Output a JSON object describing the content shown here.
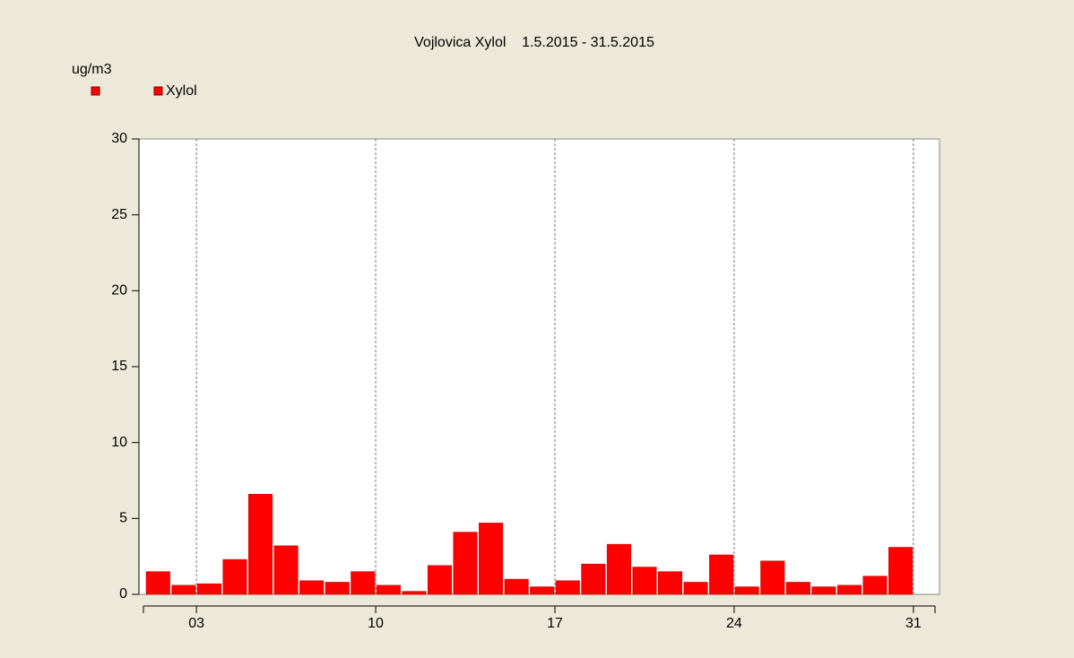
{
  "chart_data": {
    "type": "bar",
    "title": "Vojlovica Xylol    1.5.2015 - 31.5.2015",
    "y_label": "ug/m3",
    "series": [
      {
        "name": "Xylol",
        "color": "#ff0000",
        "x": [
          1,
          2,
          3,
          4,
          5,
          6,
          7,
          8,
          9,
          10,
          11,
          12,
          13,
          14,
          15,
          16,
          17,
          18,
          19,
          20,
          21,
          22,
          23,
          24,
          25,
          26,
          27,
          28,
          29,
          30
        ],
        "values": [
          1.5,
          0.6,
          0.7,
          2.3,
          6.6,
          3.2,
          0.9,
          0.8,
          1.5,
          0.6,
          0.2,
          1.9,
          4.1,
          4.7,
          1.0,
          0.5,
          0.9,
          2.0,
          3.3,
          1.8,
          1.5,
          0.8,
          2.6,
          0.5,
          2.2,
          0.8,
          0.5,
          0.6,
          1.2,
          3.1
        ]
      }
    ],
    "xlim": [
      0.93,
      32.02
    ],
    "xticks": [
      {
        "value": 3,
        "label": "03"
      },
      10,
      17,
      24,
      31
    ],
    "ylim": [
      0,
      30
    ],
    "yticks": [
      0,
      5,
      10,
      15,
      20,
      25,
      30
    ],
    "grid": true
  }
}
